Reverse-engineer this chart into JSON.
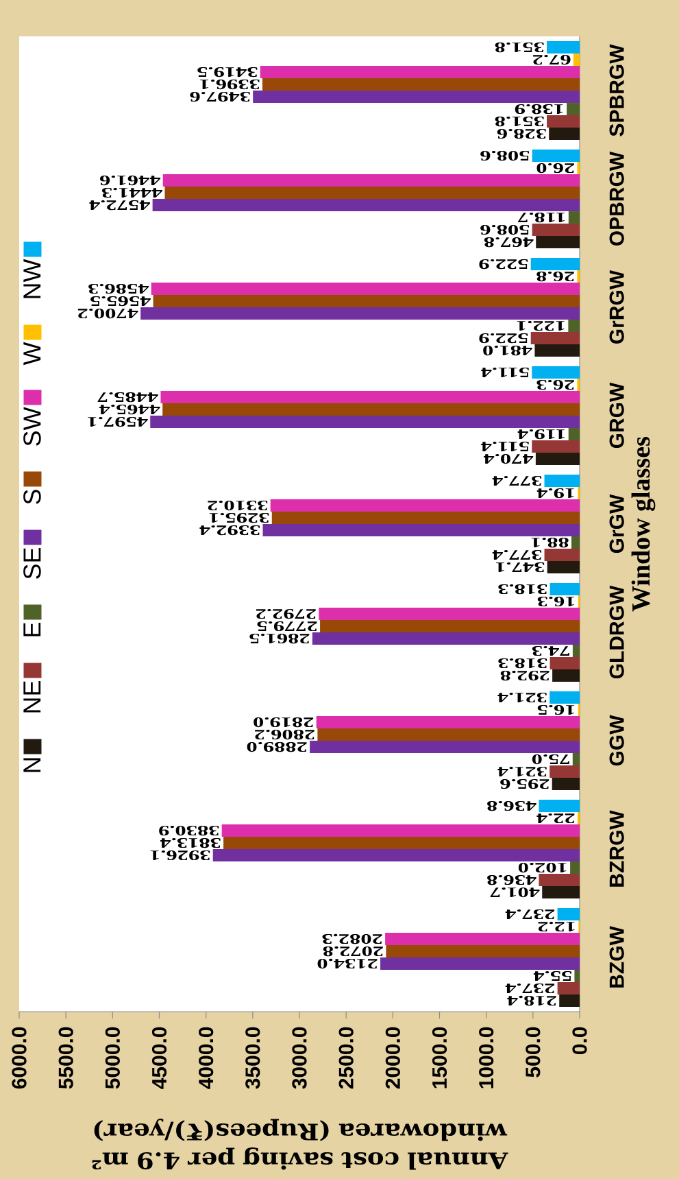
{
  "chart_data": {
    "type": "bar",
    "orientation": "horizontal",
    "xlabel": "Annual cost saving per 4.9 m² windowarea (Rupees(₹)/year)",
    "ylabel": "Window glasses",
    "categories": [
      "SPBRGW",
      "OPBRGW",
      "GrRGW",
      "GRGW",
      "GrGW",
      "GLDRGW",
      "GGW",
      "BZRGW",
      "BZGW"
    ],
    "series": [
      {
        "name": "N",
        "color": "#231a0f",
        "values": [
          328.6,
          467.8,
          481.0,
          470.4,
          347.1,
          292.8,
          295.6,
          401.7,
          218.4
        ],
        "value_labels": [
          "328.6",
          "467.8",
          "481.0",
          "470.4",
          "347.1",
          "292.8",
          "295.6",
          "401.7",
          "218.4"
        ]
      },
      {
        "name": "NE",
        "color": "#953735",
        "values": [
          351.8,
          508.6,
          522.9,
          511.4,
          377.4,
          318.3,
          321.4,
          436.8,
          237.4
        ],
        "value_labels": [
          "351.8",
          "508.6",
          "522.9",
          "511.4",
          "377.4",
          "318.3",
          "321.4",
          "436.8",
          "237.4"
        ]
      },
      {
        "name": "E",
        "color": "#4f6228",
        "values": [
          138.9,
          118.7,
          122.1,
          119.4,
          88.1,
          74.3,
          75.0,
          102.0,
          55.4
        ],
        "value_labels": [
          "138.9",
          "118.7",
          "122.1",
          "119.4",
          "88.1",
          "74.3",
          "75.0",
          "102.0",
          "55.4"
        ]
      },
      {
        "name": "SE",
        "color": "#7030a0",
        "values": [
          3497.6,
          4572.4,
          4700.2,
          4597.1,
          3392.4,
          2861.5,
          2889.0,
          3926.1,
          2134.0
        ],
        "value_labels": [
          "3497.6",
          "4572.4",
          "4700.2",
          "4597.1",
          "3392.4",
          "2861.5",
          "2889.0",
          "3926.1",
          "2134.0"
        ]
      },
      {
        "name": "S",
        "color": "#984807",
        "values": [
          3396.1,
          4441.3,
          4565.5,
          4465.4,
          3295.1,
          2779.5,
          2806.2,
          3813.4,
          2072.8
        ],
        "value_labels": [
          "3396.1",
          "4441.3",
          "4565.5",
          "4465.4",
          "3295.1",
          "2779.5",
          "2806.2",
          "3813.4",
          "2072.8"
        ]
      },
      {
        "name": "SW",
        "color": "#dd2fab",
        "values": [
          3419.5,
          4461.6,
          4586.3,
          4485.7,
          3310.2,
          2792.2,
          2819.0,
          3830.9,
          2082.3
        ],
        "value_labels": [
          "3419.5",
          "4461.6",
          "4586.3",
          "4485.7",
          "3310.2",
          "2792.2",
          "2819.0",
          "3830.9",
          "2082.3"
        ]
      },
      {
        "name": "W",
        "color": "#ffc000",
        "values": [
          67.2,
          26.0,
          26.8,
          26.3,
          19.4,
          16.3,
          16.5,
          22.4,
          12.2
        ],
        "value_labels": [
          "67.2",
          "26.0",
          "26.8",
          "26.3",
          "19.4",
          "16.3",
          "16.5",
          "22.4",
          "12.2"
        ]
      },
      {
        "name": "NW",
        "color": "#00b0f0",
        "values": [
          351.8,
          508.6,
          522.9,
          511.4,
          377.4,
          318.3,
          321.4,
          436.8,
          237.4
        ],
        "value_labels": [
          "351.8",
          "508.6",
          "522.9",
          "511.4",
          "377.4",
          "318.3",
          "321.4",
          "436.8",
          "237.4"
        ]
      }
    ],
    "xlim": [
      6000,
      0
    ],
    "xticks": [
      {
        "value": 0,
        "label": "0.0"
      },
      {
        "value": 500,
        "label": "500.0"
      },
      {
        "value": 1000,
        "label": "1000.0"
      },
      {
        "value": 1500,
        "label": "1500.0"
      },
      {
        "value": 2000,
        "label": "2000.0"
      },
      {
        "value": 2500,
        "label": "2500.0"
      },
      {
        "value": 3000,
        "label": "3000.0"
      },
      {
        "value": 3500,
        "label": "3500.0"
      },
      {
        "value": 4000,
        "label": "4000.0"
      },
      {
        "value": 4500,
        "label": "4500.0"
      },
      {
        "value": 5000,
        "label": "5000.0"
      },
      {
        "value": 5500,
        "label": "5500.0"
      },
      {
        "value": 6000,
        "label": "6000.0"
      }
    ],
    "legend": "left"
  }
}
